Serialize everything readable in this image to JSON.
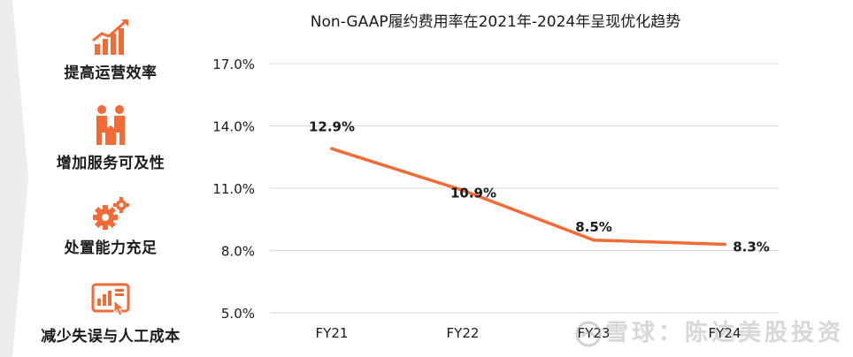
{
  "sidebar": {
    "items": [
      {
        "label": "提高运营效率",
        "icon": "growth-chart-icon"
      },
      {
        "label": "增加服务可及性",
        "icon": "handshake-icon"
      },
      {
        "label": "处置能力充足",
        "icon": "gears-icon"
      },
      {
        "label": "减少失误与人工成本",
        "icon": "click-screen-icon"
      }
    ]
  },
  "colors": {
    "accent": "#F26A35",
    "grid": "#d9d9d9",
    "text": "#1a1a1a",
    "left_band": "#e9e9e9"
  },
  "watermark": {
    "text": "雪球：陈达美股投资"
  },
  "chart_data": {
    "type": "line",
    "title": "Non-GAAP履约费用率在2021年-2024年呈现优化趋势",
    "categories": [
      "FY21",
      "FY22",
      "FY23",
      "FY24"
    ],
    "series": [
      {
        "values": [
          12.9,
          10.9,
          8.5,
          8.3
        ],
        "labels": [
          "12.9%",
          "10.9%",
          "8.5%",
          "8.3%"
        ]
      }
    ],
    "yticks": [
      "5.0%",
      "8.0%",
      "11.0%",
      "14.0%",
      "17.0%"
    ],
    "ytick_values": [
      5,
      8,
      11,
      14,
      17
    ],
    "ylim": [
      5,
      17
    ],
    "grid": true,
    "xlabel": "",
    "ylabel": ""
  }
}
